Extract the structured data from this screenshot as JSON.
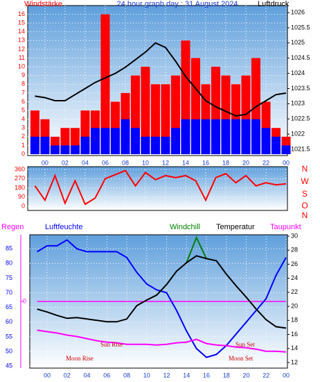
{
  "chart_data": [
    {
      "type": "combo",
      "title": "24 hour graph day : 31 August 2024",
      "y_label": "Windstärke",
      "y2_label": "Luftdruck",
      "x": [
        -1,
        0,
        1,
        2,
        3,
        4,
        5,
        6,
        7,
        8,
        9,
        10,
        11,
        12,
        13,
        14,
        15,
        16,
        17,
        18,
        19,
        20,
        21,
        22,
        23,
        24
      ],
      "xlim": [
        -1.72,
        24.14
      ],
      "xticks": [
        {
          "value": 0,
          "label": "00"
        },
        {
          "value": 2,
          "label": "02"
        },
        {
          "value": 4,
          "label": "04"
        },
        {
          "value": 6,
          "label": "06"
        },
        {
          "value": 8,
          "label": "08"
        },
        10,
        12,
        14,
        16,
        18,
        20,
        22,
        {
          "value": 24,
          "label": "00"
        }
      ],
      "ylim": [
        0,
        17
      ],
      "yticks": [
        0,
        1,
        2,
        3,
        4,
        5,
        6,
        7,
        8,
        9,
        10,
        11,
        12,
        13,
        14,
        15,
        16
      ],
      "y2lim": [
        1021.34,
        1026.23
      ],
      "y2ticks": [
        1021.5,
        1022,
        1022.5,
        1023,
        1023.5,
        1024,
        1024.5,
        1025,
        1025.5,
        1026
      ],
      "grid": true,
      "series": [
        {
          "type": "bar",
          "color": "#ff0000",
          "values": [
            5,
            4,
            2,
            3,
            3,
            5,
            5,
            16,
            6,
            7,
            9,
            10,
            8,
            8,
            9,
            13,
            11,
            8,
            10,
            9,
            8,
            9,
            11,
            6,
            3,
            2
          ]
        },
        {
          "type": "bar",
          "color": "#0000ff",
          "values": [
            2,
            2,
            1,
            1,
            1,
            2,
            3,
            3,
            3,
            4,
            3,
            2,
            2,
            2,
            3,
            4,
            4,
            4,
            4,
            4,
            4,
            4,
            4,
            3,
            2,
            1
          ]
        },
        {
          "type": "line",
          "axis": "y2",
          "color": "#000000",
          "values": [
            1023.25,
            1023.2,
            1023.1,
            1023.1,
            1023.3,
            1023.5,
            1023.7,
            1023.85,
            1024.0,
            1024.2,
            1024.45,
            1024.7,
            1025.0,
            1024.85,
            1024.4,
            1023.9,
            1023.5,
            1023.1,
            1022.9,
            1022.75,
            1022.6,
            1022.65,
            1022.9,
            1023.1,
            1023.3,
            1023.35
          ]
        }
      ]
    },
    {
      "type": "line",
      "x": [
        -1,
        0,
        1,
        2,
        3,
        4,
        5,
        6,
        7,
        8,
        9,
        10,
        11,
        12,
        13,
        14,
        15,
        16,
        17,
        18,
        19,
        20,
        21,
        22,
        23,
        24
      ],
      "xlim": [
        -1.72,
        24.14
      ],
      "xticks": [
        {
          "value": 0,
          "label": "00"
        },
        {
          "value": 2,
          "label": "02"
        },
        {
          "value": 4,
          "label": "04"
        },
        {
          "value": 6,
          "label": "06"
        },
        {
          "value": 8,
          "label": "08"
        },
        10,
        12,
        14,
        16,
        18,
        20,
        22,
        {
          "value": 24,
          "label": "00"
        }
      ],
      "ylim": [
        0,
        360
      ],
      "yticks": [
        0,
        90,
        180,
        270,
        360
      ],
      "compass_labels": [
        "N",
        "W",
        "S",
        "O",
        "N"
      ],
      "grid": true,
      "series": [
        {
          "color": "#ff0000",
          "values": [
            200,
            60,
            300,
            30,
            250,
            20,
            80,
            270,
            310,
            350,
            200,
            330,
            260,
            300,
            280,
            300,
            250,
            60,
            280,
            320,
            230,
            300,
            200,
            230,
            210,
            220
          ]
        }
      ]
    },
    {
      "type": "combo",
      "x": [
        -1,
        0,
        1,
        2,
        3,
        4,
        5,
        6,
        7,
        8,
        9,
        10,
        11,
        12,
        13,
        14,
        15,
        16,
        17,
        18,
        19,
        20,
        21,
        22,
        23,
        24
      ],
      "xlim": [
        -1.74,
        24.14
      ],
      "xticks": [
        {
          "value": 0,
          "label": "00"
        },
        {
          "value": 2,
          "label": "02"
        },
        {
          "value": 4,
          "label": "04"
        },
        {
          "value": 6,
          "label": "06"
        },
        {
          "value": 8,
          "label": "08"
        },
        10,
        12,
        14,
        16,
        18,
        20,
        22,
        {
          "value": 24,
          "label": "00"
        }
      ],
      "ylim": [
        44.8,
        89.3
      ],
      "yticks": [
        45,
        50,
        55,
        60,
        65,
        70,
        75,
        80,
        85
      ],
      "y2lim": [
        11.4,
        30
      ],
      "y2ticks": [
        12,
        14,
        16,
        18,
        20,
        22,
        24,
        26,
        28,
        30
      ],
      "rainlim": [
        -1,
        1
      ],
      "rainticks": [
        0
      ],
      "grid": true,
      "annotations": [
        "Sun Rise",
        "Sun Set",
        "Moon Rise",
        "Moon Set"
      ],
      "series": [
        {
          "name": "Regen",
          "type": "line",
          "axis": "rain",
          "color": "#ff00ff",
          "values": [
            0,
            0,
            0,
            0,
            0,
            0,
            0,
            0,
            0,
            0,
            0,
            0,
            0,
            0,
            0,
            0,
            0,
            0,
            0,
            0,
            0,
            0,
            0,
            0,
            0,
            0
          ]
        },
        {
          "name": "Luftfeuchte",
          "type": "line",
          "color": "#0000ff",
          "values": [
            84,
            86,
            86,
            88,
            85,
            84,
            84,
            84,
            84,
            82,
            77,
            73,
            71,
            70,
            64,
            57,
            51,
            48,
            49,
            52,
            56,
            60,
            64,
            68,
            76,
            82
          ]
        },
        {
          "name": "Windchill",
          "type": "line",
          "axis": "y2",
          "color": "#008000",
          "values": [
            null,
            null,
            null,
            null,
            null,
            null,
            null,
            null,
            null,
            null,
            null,
            null,
            null,
            null,
            null,
            26.2,
            29.8,
            26.8,
            null,
            null,
            null,
            null,
            null,
            null,
            null,
            null
          ]
        },
        {
          "name": "Temperatur",
          "type": "line",
          "axis": "y2",
          "color": "#000000",
          "values": [
            19.6,
            19.2,
            18.7,
            18.3,
            18.4,
            18.2,
            18.0,
            17.8,
            17.8,
            18.2,
            20.1,
            20.9,
            21.6,
            23.1,
            25.0,
            26.2,
            27.2,
            26.8,
            26.5,
            24.6,
            22.9,
            21.3,
            19.6,
            18.1,
            17.1,
            16.9
          ]
        },
        {
          "name": "Taupunkt",
          "type": "line",
          "axis": "y2",
          "color": "#ff00ff",
          "values": [
            16.6,
            16.4,
            16.2,
            15.9,
            15.7,
            15.4,
            15.1,
            14.9,
            14.8,
            14.6,
            14.6,
            14.6,
            14.5,
            14.6,
            14.8,
            14.9,
            15.3,
            14.7,
            14.5,
            14.4,
            14.2,
            14.1,
            13.9,
            13.6,
            13.6,
            13.5
          ]
        }
      ]
    }
  ]
}
